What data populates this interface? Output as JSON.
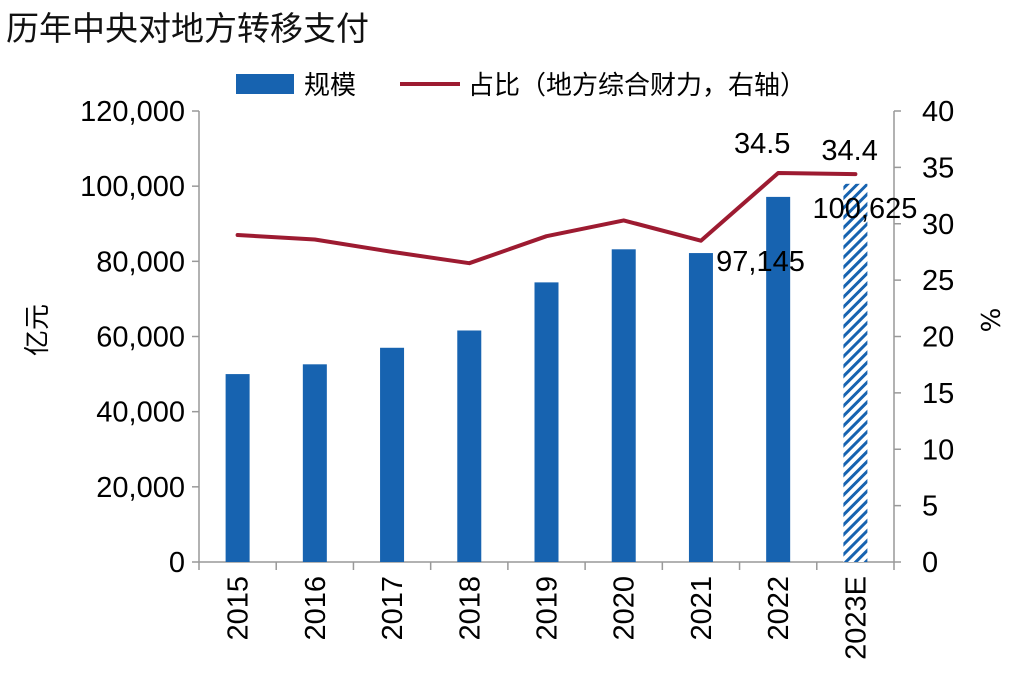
{
  "chart_data": {
    "type": "bar",
    "title": "历年中央对地方转移支付",
    "categories": [
      "2015",
      "2016",
      "2017",
      "2018",
      "2019",
      "2020",
      "2021",
      "2022",
      "2023E"
    ],
    "series": [
      {
        "name": "规模",
        "axis": "left",
        "type": "bar",
        "color": "#1763b0",
        "values": [
          50000,
          52600,
          57000,
          61600,
          74400,
          83200,
          82200,
          97145,
          100625
        ],
        "hatched_categories": [
          "2023E"
        ]
      },
      {
        "name": "占比（地方综合财力，右轴）",
        "axis": "right",
        "type": "line",
        "color": "#9d1b31",
        "values": [
          29.0,
          28.6,
          27.5,
          26.5,
          28.9,
          30.3,
          28.5,
          34.5,
          34.4
        ]
      }
    ],
    "ylabel": "亿元",
    "y2label": "%",
    "ylim": [
      0,
      120000
    ],
    "y2lim": [
      0,
      40
    ],
    "yticks": [
      "0",
      "20,000",
      "40,000",
      "60,000",
      "80,000",
      "100,000",
      "120,000"
    ],
    "y2ticks": [
      "0",
      "5",
      "10",
      "15",
      "20",
      "25",
      "30",
      "35",
      "40"
    ],
    "annotations": [
      {
        "series": "规模",
        "category": "2022",
        "text": "97,145"
      },
      {
        "series": "规模",
        "category": "2023E",
        "text": "100,625"
      },
      {
        "series": "占比（地方综合财力，右轴）",
        "category": "2022",
        "text": "34.5"
      },
      {
        "series": "占比（地方综合财力，右轴）",
        "category": "2023E",
        "text": "34.4"
      }
    ],
    "legend_position": "top"
  }
}
